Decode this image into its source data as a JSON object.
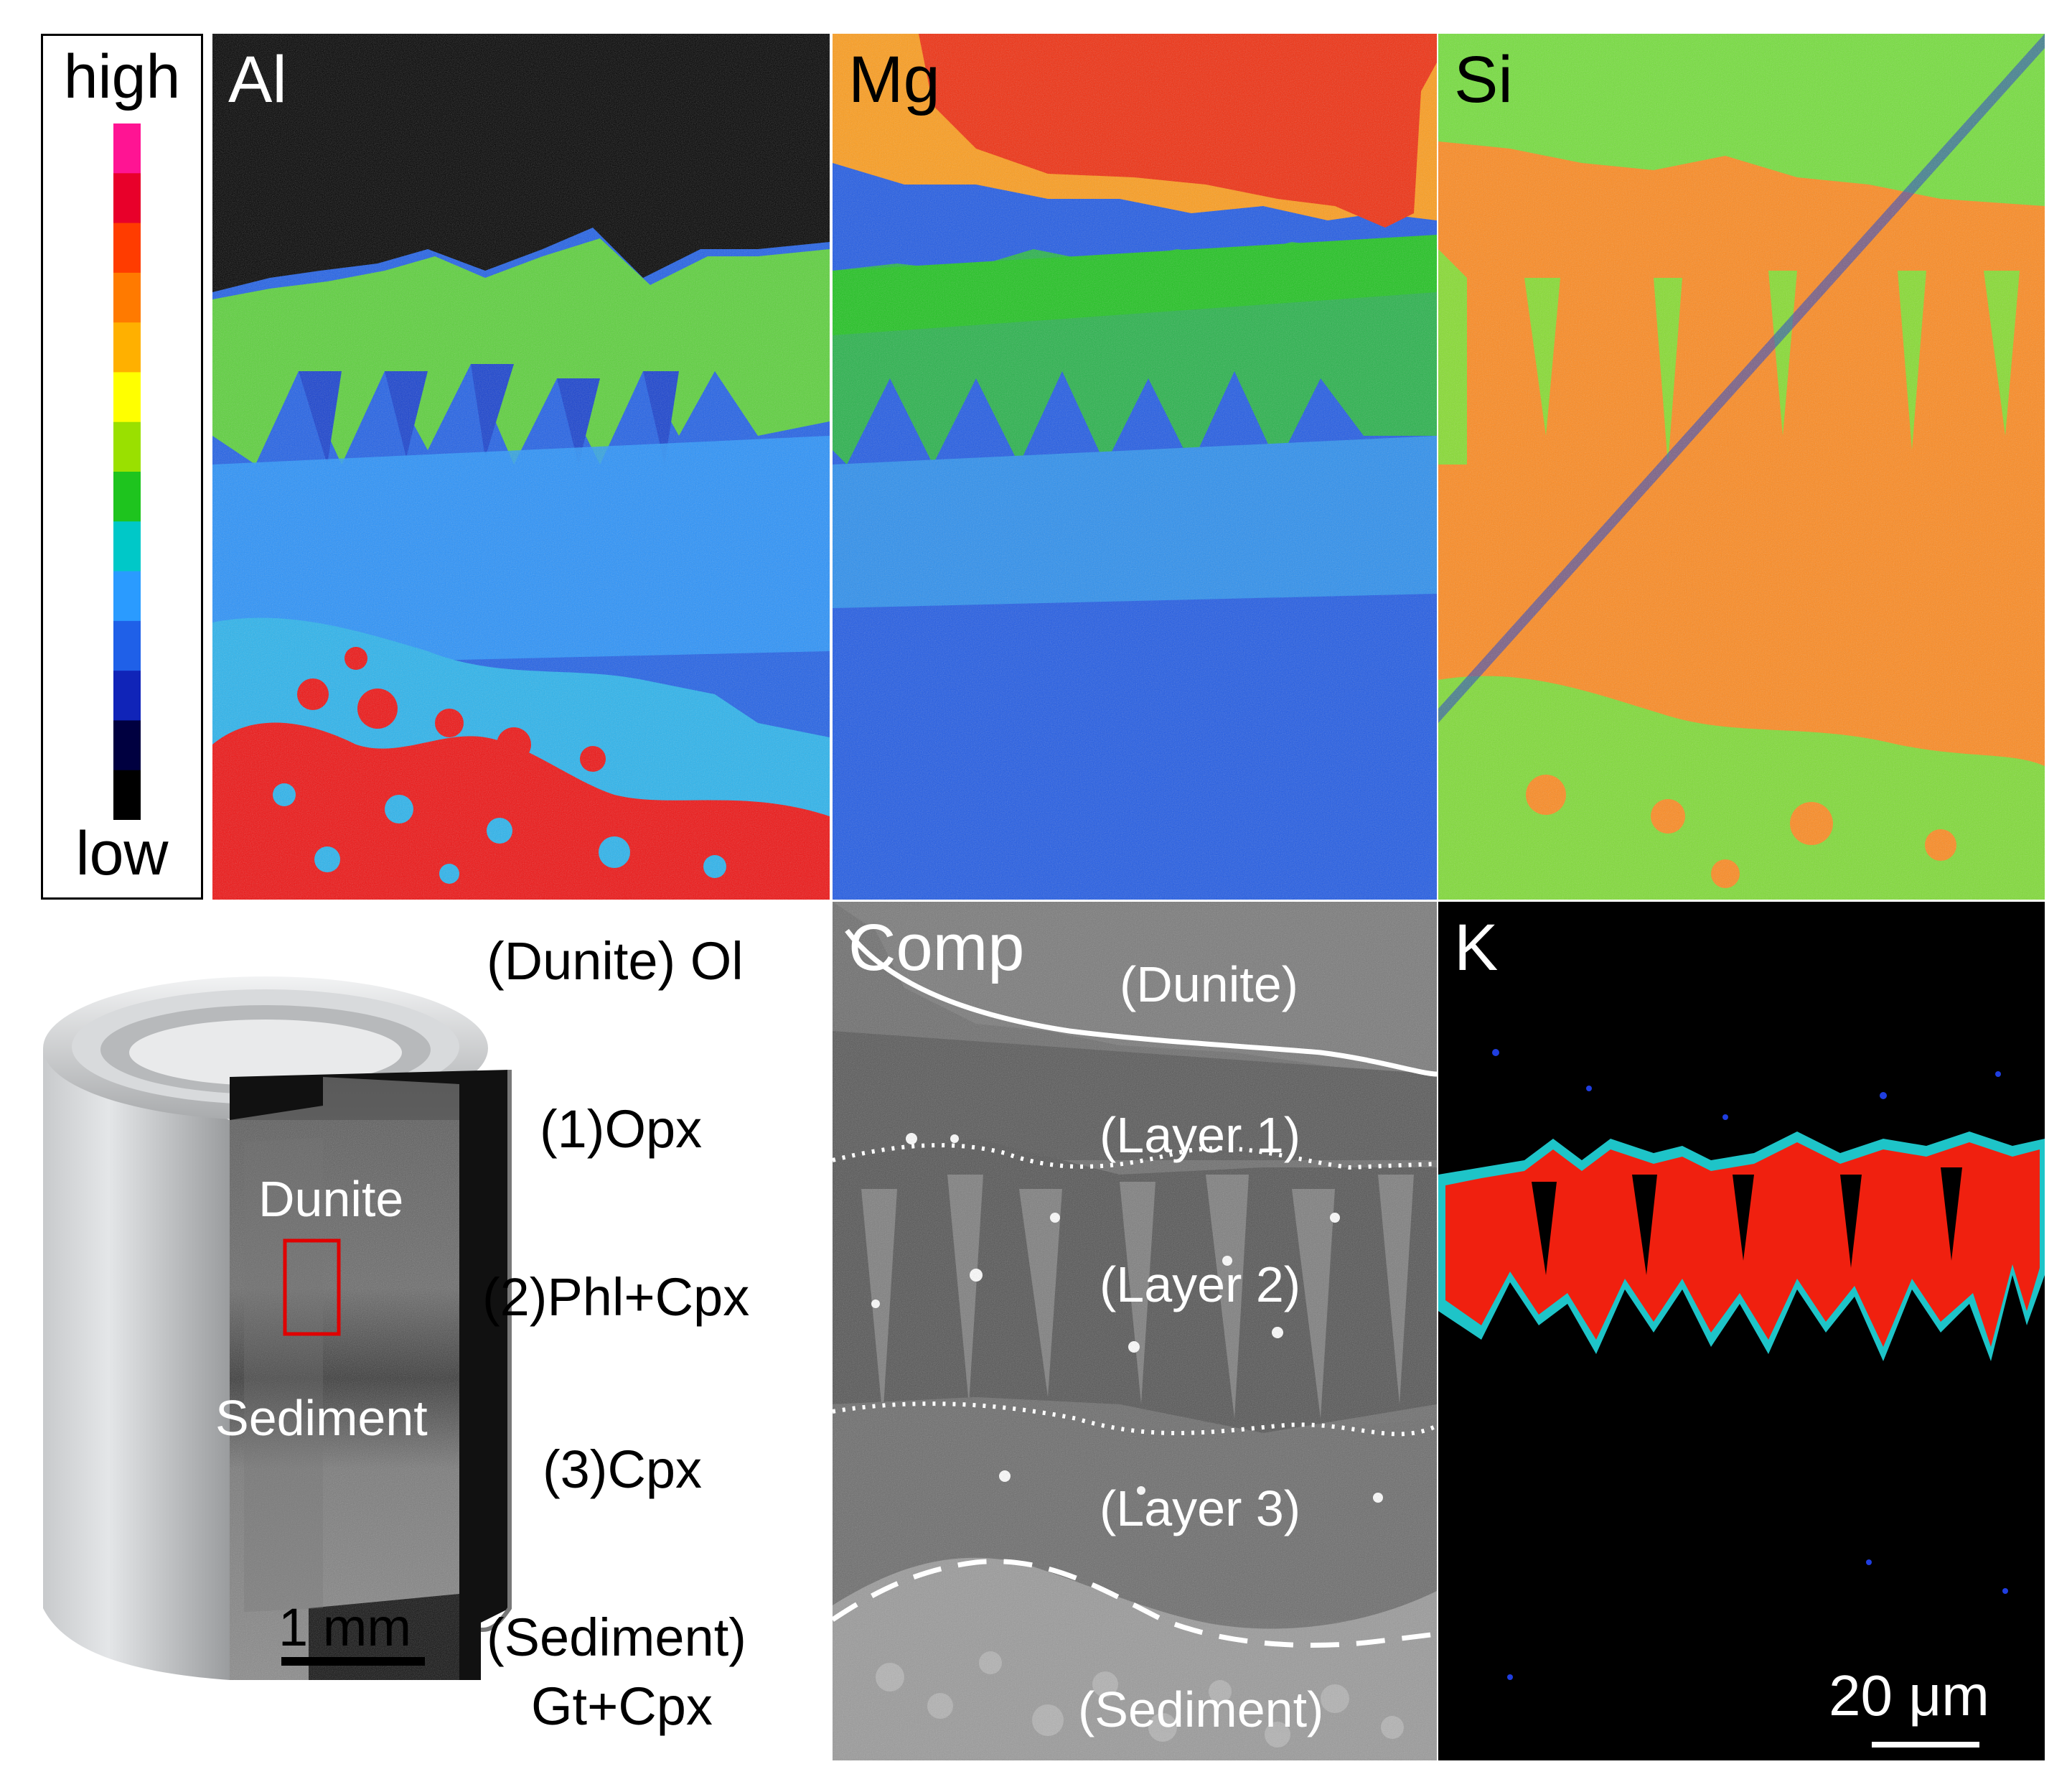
{
  "figure": {
    "colorbar": {
      "high_label": "high",
      "low_label": "low",
      "colors": [
        "#ff1493",
        "#e8002a",
        "#ff3c00",
        "#ff7a00",
        "#ffb000",
        "#ffff00",
        "#9ae000",
        "#1ec41e",
        "#00c8c8",
        "#2a9bff",
        "#1f60e8",
        "#1024b8",
        "#000040",
        "#000000"
      ]
    },
    "maps": {
      "al": {
        "label": "Al"
      },
      "mg": {
        "label": "Mg"
      },
      "si": {
        "label": "Si"
      },
      "comp": {
        "label": "Comp"
      },
      "k": {
        "label": "K"
      }
    },
    "capsule": {
      "dunite_label": "Dunite",
      "sediment_label": "Sediment",
      "scale_label": "1 mm"
    },
    "layers": [
      {
        "label": "(Dunite) Ol"
      },
      {
        "label": "(1)Opx"
      },
      {
        "label": "(2)Phl+Cpx"
      },
      {
        "label": "(3)Cpx"
      },
      {
        "label": "(Sediment)"
      },
      {
        "label": "Gt+Cpx"
      }
    ],
    "comp_labels": {
      "dunite": "(Dunite)",
      "layer1": "(Layer 1)",
      "layer2": "(Layer 2)",
      "layer3": "(Layer 3)",
      "sediment": "(Sediment)"
    },
    "scale_bar": {
      "label": "20 μm"
    }
  }
}
